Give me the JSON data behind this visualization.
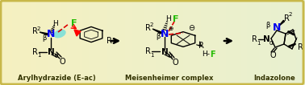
{
  "fig_width": 3.78,
  "fig_height": 1.06,
  "dpi": 100,
  "bg_left": "#f5f0c0",
  "bg_right": "#e8f0d0",
  "border_color": "#c8b84a",
  "N_color": "#0000ee",
  "F_color": "#22bb00",
  "dashed_color": "#dd0000",
  "cyan_color": "#66dddd",
  "label1": "Arylhydrazide (E-ac)",
  "label2": "Meisenheimer complex",
  "label3": "Indazolone",
  "label_fontsize": 6.0,
  "arrow_lw": 1.5
}
